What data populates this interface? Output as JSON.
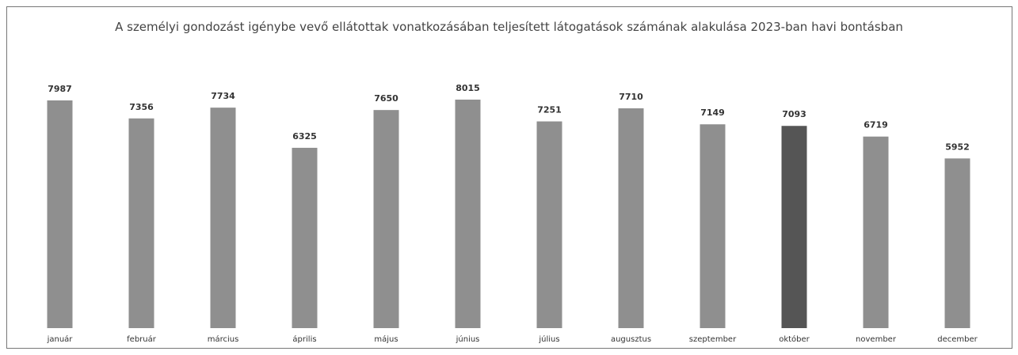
{
  "chart_data": {
    "type": "bar",
    "title": "A személyi gondozást igénybe vevő ellátottak vonatkozásában teljesített látogatások számának alakulása 2023-ban havi bontásban",
    "categories": [
      "január",
      "február",
      "március",
      "április",
      "május",
      "június",
      "július",
      "augusztus",
      "szeptember",
      "október",
      "november",
      "december"
    ],
    "values": [
      7987,
      7356,
      7734,
      6325,
      7650,
      8015,
      7251,
      7710,
      7149,
      7093,
      6719,
      5952
    ],
    "colors": [
      "#8f8f8f",
      "#8f8f8f",
      "#8f8f8f",
      "#8f8f8f",
      "#8f8f8f",
      "#8f8f8f",
      "#8f8f8f",
      "#8f8f8f",
      "#8f8f8f",
      "#555555",
      "#8f8f8f",
      "#8f8f8f"
    ],
    "grid": false
  }
}
